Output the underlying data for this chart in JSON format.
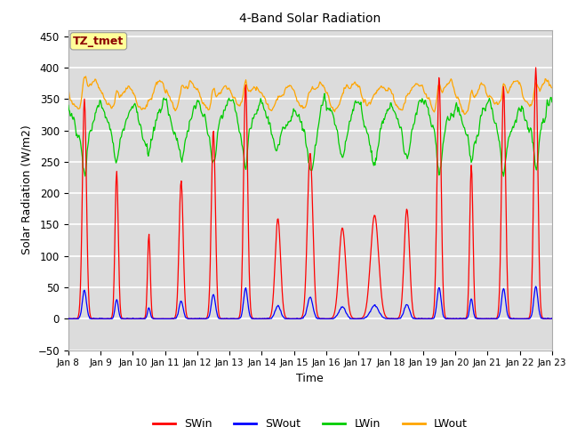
{
  "title": "4-Band Solar Radiation",
  "xlabel": "Time",
  "ylabel": "Solar Radiation (W/m2)",
  "ylim": [
    -50,
    460
  ],
  "annotation_text": "TZ_tmet",
  "annotation_color": "#8B0000",
  "annotation_bg": "#FFFF99",
  "legend_entries": [
    "SWin",
    "SWout",
    "LWin",
    "LWout"
  ],
  "line_colors": [
    "#FF0000",
    "#0000FF",
    "#00CC00",
    "#FFA500"
  ],
  "background_color": "#DCDCDC",
  "grid_color": "#FFFFFF",
  "tick_labels": [
    "Jan 8",
    "Jan 9",
    "Jan 10",
    "Jan 11",
    "Jan 12",
    "Jan 13",
    "Jan 14",
    "Jan 15",
    "Jan 16",
    "Jan 17",
    "Jan 18",
    "Jan 19",
    "Jan 20",
    "Jan 21",
    "Jan 22",
    "Jan 23"
  ]
}
